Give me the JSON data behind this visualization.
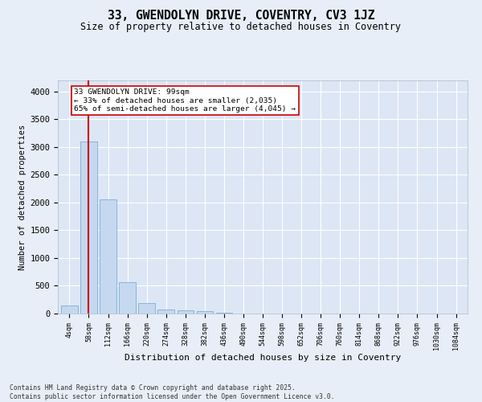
{
  "title_line1": "33, GWENDOLYN DRIVE, COVENTRY, CV3 1JZ",
  "title_line2": "Size of property relative to detached houses in Coventry",
  "xlabel": "Distribution of detached houses by size in Coventry",
  "ylabel": "Number of detached properties",
  "bar_color": "#c5d8f0",
  "bar_edge_color": "#7aafd4",
  "background_color": "#e8eef7",
  "plot_bg_color": "#dce6f5",
  "grid_color": "#ffffff",
  "vline_color": "#cc0000",
  "vline_x_index": 1,
  "annotation_text": "33 GWENDOLYN DRIVE: 99sqm\n← 33% of detached houses are smaller (2,035)\n65% of semi-detached houses are larger (4,045) →",
  "annotation_box_color": "#ffffff",
  "annotation_box_edge": "#cc0000",
  "footnote": "Contains HM Land Registry data © Crown copyright and database right 2025.\nContains public sector information licensed under the Open Government Licence v3.0.",
  "categories": [
    "4sqm",
    "58sqm",
    "112sqm",
    "166sqm",
    "220sqm",
    "274sqm",
    "328sqm",
    "382sqm",
    "436sqm",
    "490sqm",
    "544sqm",
    "598sqm",
    "652sqm",
    "706sqm",
    "760sqm",
    "814sqm",
    "868sqm",
    "922sqm",
    "976sqm",
    "1030sqm",
    "1084sqm"
  ],
  "values": [
    150,
    3100,
    2050,
    570,
    190,
    75,
    60,
    50,
    20,
    5,
    2,
    1,
    0,
    0,
    0,
    0,
    0,
    0,
    0,
    0,
    0
  ],
  "ylim": [
    0,
    4200
  ],
  "yticks": [
    0,
    500,
    1000,
    1500,
    2000,
    2500,
    3000,
    3500,
    4000
  ]
}
